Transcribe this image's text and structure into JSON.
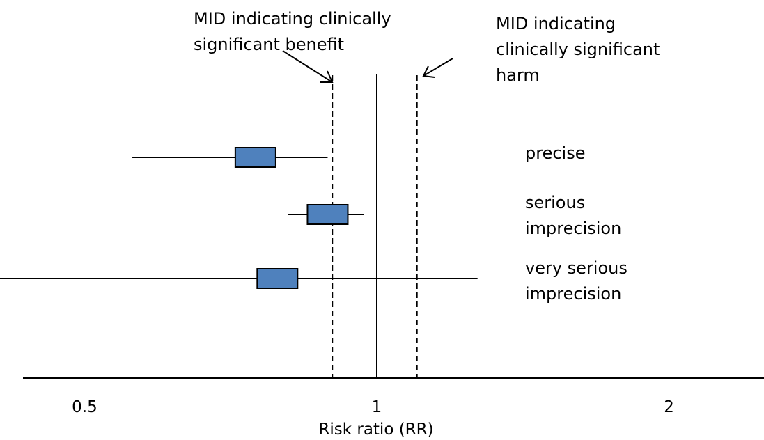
{
  "chart_data": {
    "type": "forest",
    "xlabel": "Risk ratio (RR)",
    "scale": "log",
    "xlim": [
      0.4,
      2.6
    ],
    "ticks": [
      {
        "value": 0.5,
        "label": "0.5"
      },
      {
        "value": 1,
        "label": "1"
      },
      {
        "value": 2,
        "label": "2"
      }
    ],
    "reference_line": {
      "value": 1
    },
    "mid_lines": [
      {
        "value": 0.9,
        "label_lines": [
          "MID indicating clinically",
          "significant benefit"
        ]
      },
      {
        "value": 1.1,
        "label_lines": [
          "MID indicating",
          "clinically significant",
          "harm"
        ]
      }
    ],
    "box_color": "#4f81bd",
    "rows": [
      {
        "estimate": 0.75,
        "ci_low": 0.56,
        "ci_high": 0.89,
        "label_lines": [
          "precise"
        ]
      },
      {
        "estimate": 0.89,
        "ci_low": 0.81,
        "ci_high": 0.97,
        "label_lines": [
          "serious",
          "imprecision"
        ]
      },
      {
        "estimate": 0.79,
        "ci_low": 0.4,
        "ci_high": 1.27,
        "label_lines": [
          "very serious",
          "imprecision"
        ]
      }
    ]
  }
}
